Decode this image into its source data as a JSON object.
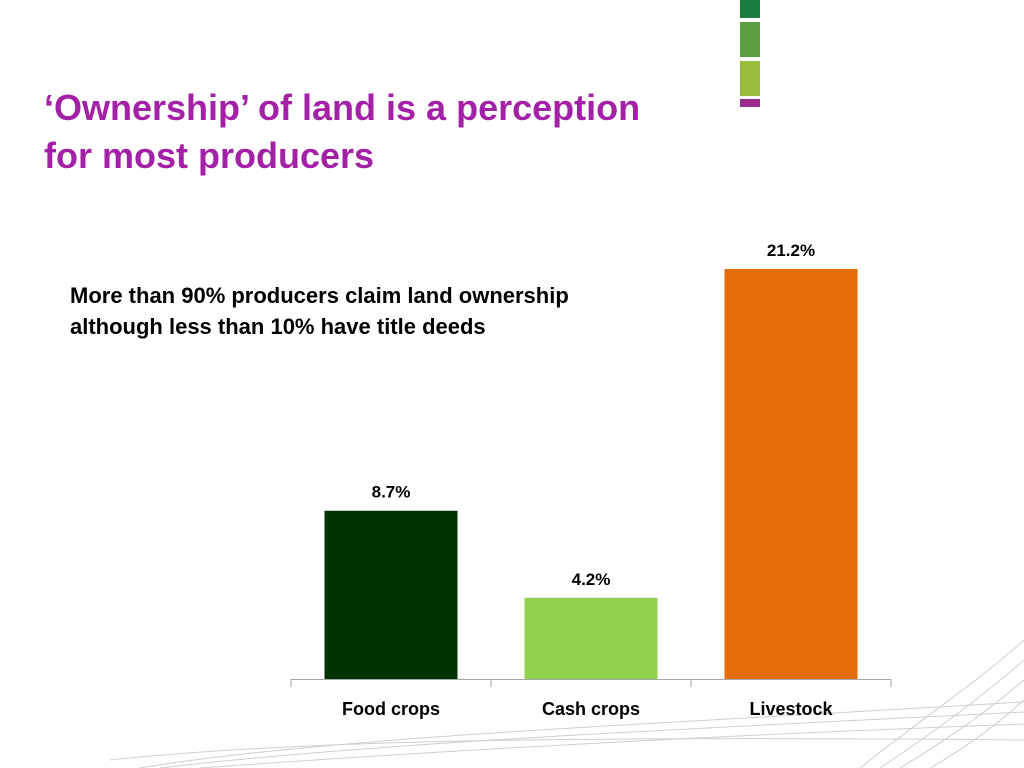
{
  "title": {
    "line1": "‘Ownership’ of land is a perception",
    "line2": "for most producers"
  },
  "subtitle": {
    "line1": "More than 90% producers claim land ownership",
    "line2": "although less than 10% have title deeds"
  },
  "colors": {
    "title": "#a321a6",
    "deco": [
      "#1a7c3e",
      "#5aa043",
      "#98bd3b",
      "#9b2a8f"
    ]
  },
  "chart_data": {
    "type": "bar",
    "categories": [
      "Food crops",
      "Cash crops",
      "Livestock"
    ],
    "values": [
      8.7,
      4.2,
      21.2
    ],
    "labels": [
      "8.7%",
      "4.2%",
      "21.2%"
    ],
    "colors": [
      "#003300",
      "#92d050",
      "#e36c09"
    ],
    "title": "",
    "xlabel": "",
    "ylabel": "",
    "ylim": [
      0,
      21.2
    ],
    "grid": false,
    "legend": "none"
  }
}
